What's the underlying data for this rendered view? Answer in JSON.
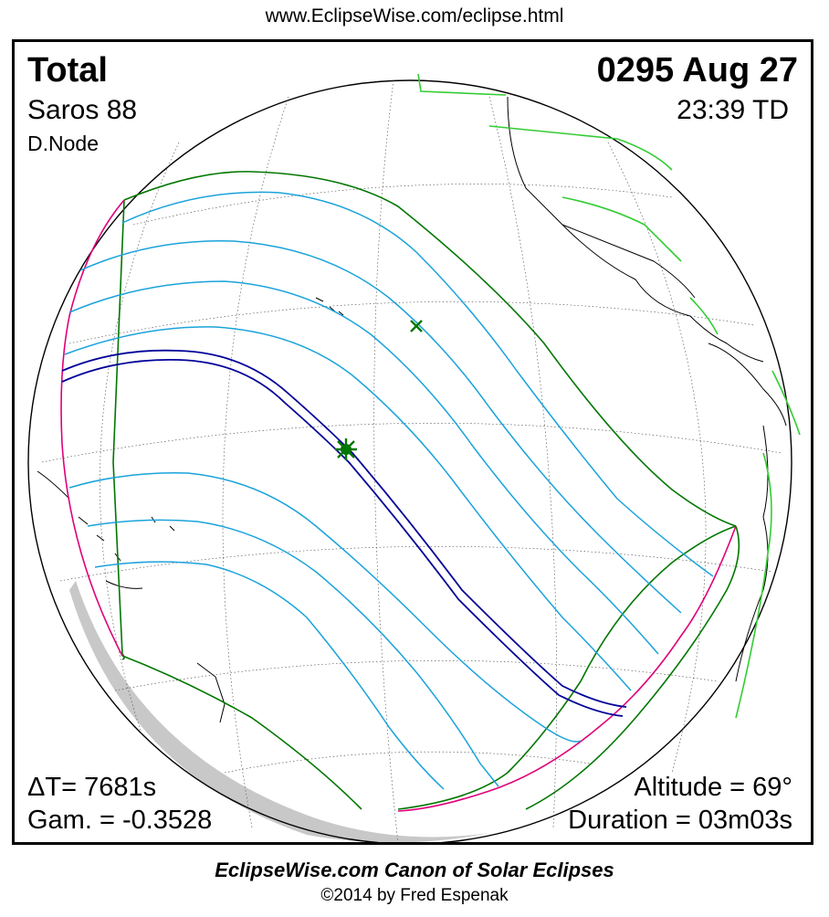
{
  "header": {
    "url": "www.EclipseWise.com/eclipse.html"
  },
  "eclipse": {
    "type": "Total",
    "saros": "Saros  88",
    "node": "D.Node",
    "date": "0295 Aug 27",
    "time": "23:39 TD",
    "delta_t": "ΔT=   7681s",
    "gamma": "Gam. = -0.3528",
    "altitude": "Altitude = 69°",
    "duration": "Duration = 03m03s"
  },
  "footer": {
    "canon": "EclipseWise.com Canon of Solar Eclipses",
    "copyright": "©2014 by Fred Espenak"
  },
  "colors": {
    "umbral_path": "#000099",
    "penumbral_limits": "#007700",
    "contour_lines": "#1aa3db",
    "rise_set_curves": "#e0007a",
    "land_green": "#33cc33",
    "shading": "#c8c8c8"
  },
  "icons": {
    "greatest_eclipse": "star-marker-icon",
    "subsolar_point": "x-marker-icon"
  }
}
